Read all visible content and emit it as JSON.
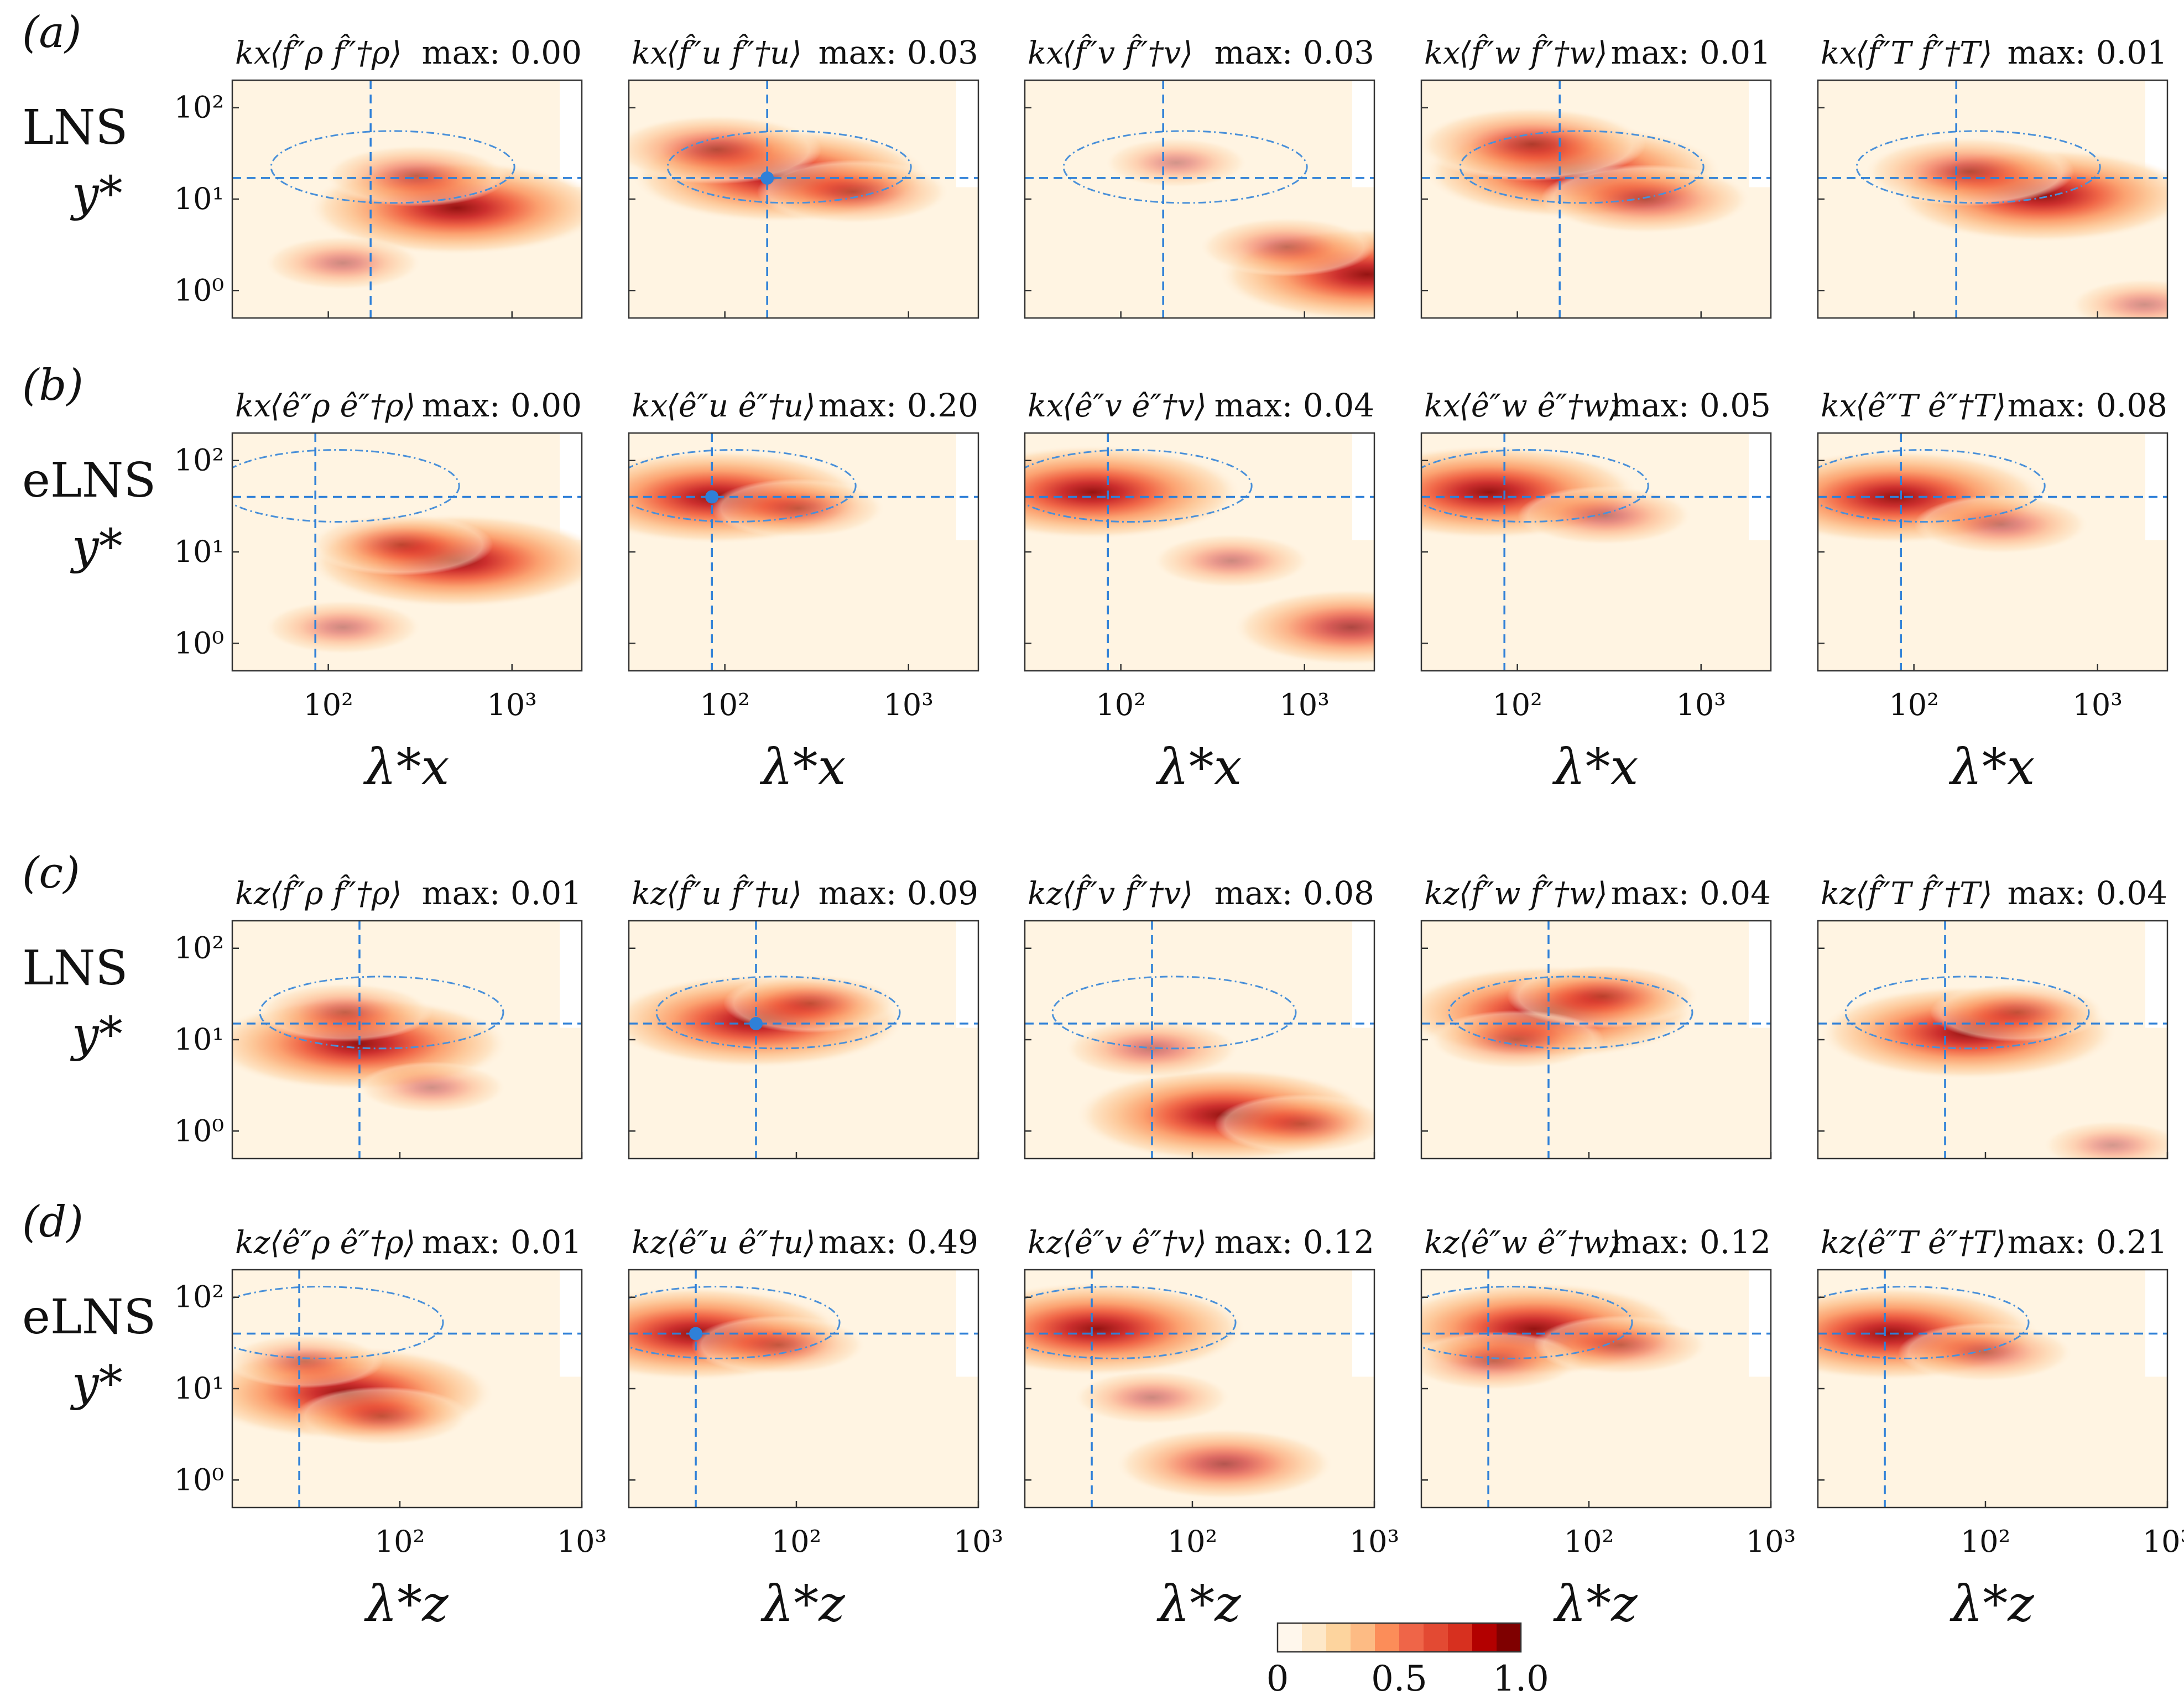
{
  "rows": [
    {
      "label": "(a)",
      "model": "LNS",
      "ylabel": "y*",
      "xaxis": "x",
      "xlabel": "λ*x",
      "xlim": [
        30,
        2400
      ],
      "xticks": [
        "10²",
        "10³"
      ],
      "titles": [
        {
          "prefix": "kx",
          "op": "⟨f̂″ρ f̂″†ρ⟩",
          "max": "max: 0.00"
        },
        {
          "prefix": "kx",
          "op": "⟨f̂″u f̂″†u⟩",
          "max": "max: 0.03"
        },
        {
          "prefix": "kx",
          "op": "⟨f̂″v f̂″†v⟩",
          "max": "max: 0.03"
        },
        {
          "prefix": "kx",
          "op": "⟨f̂″w f̂″†w⟩",
          "max": "max: 0.01"
        },
        {
          "prefix": "kx",
          "op": "⟨f̂″T f̂″†T⟩",
          "max": "max: 0.01"
        }
      ]
    },
    {
      "label": "(b)",
      "model": "eLNS",
      "ylabel": "y*",
      "xaxis": "x",
      "xlabel": "λ*x",
      "xlim": [
        30,
        2400
      ],
      "xticks": [
        "10²",
        "10³"
      ],
      "titles": [
        {
          "prefix": "kx",
          "op": "⟨ê″ρ ê″†ρ⟩",
          "max": "max: 0.00"
        },
        {
          "prefix": "kx",
          "op": "⟨ê″u ê″†u⟩",
          "max": "max: 0.20"
        },
        {
          "prefix": "kx",
          "op": "⟨ê″v ê″†v⟩",
          "max": "max: 0.04"
        },
        {
          "prefix": "kx",
          "op": "⟨ê″w ê″†w⟩",
          "max": "max: 0.05"
        },
        {
          "prefix": "kx",
          "op": "⟨ê″T ê″†T⟩",
          "max": "max: 0.08"
        }
      ]
    },
    {
      "label": "(c)",
      "model": "LNS",
      "ylabel": "y*",
      "xaxis": "z",
      "xlabel": "λ*z",
      "xlim": [
        12,
        1000
      ],
      "xticks": [
        "10²",
        "10³"
      ],
      "titles": [
        {
          "prefix": "kz",
          "op": "⟨f̂″ρ f̂″†ρ⟩",
          "max": "max: 0.01"
        },
        {
          "prefix": "kz",
          "op": "⟨f̂″u f̂″†u⟩",
          "max": "max: 0.09"
        },
        {
          "prefix": "kz",
          "op": "⟨f̂″v f̂″†v⟩",
          "max": "max: 0.08"
        },
        {
          "prefix": "kz",
          "op": "⟨f̂″w f̂″†w⟩",
          "max": "max: 0.04"
        },
        {
          "prefix": "kz",
          "op": "⟨f̂″T f̂″†T⟩",
          "max": "max: 0.04"
        }
      ]
    },
    {
      "label": "(d)",
      "model": "eLNS",
      "ylabel": "y*",
      "xaxis": "z",
      "xlabel": "λ*z",
      "xlim": [
        12,
        1000
      ],
      "xticks": [
        "10²",
        "10³"
      ],
      "titles": [
        {
          "prefix": "kz",
          "op": "⟨ê″ρ ê″†ρ⟩",
          "max": "max: 0.01"
        },
        {
          "prefix": "kz",
          "op": "⟨ê″u ê″†u⟩",
          "max": "max: 0.49"
        },
        {
          "prefix": "kz",
          "op": "⟨ê″v ê″†v⟩",
          "max": "max: 0.12"
        },
        {
          "prefix": "kz",
          "op": "⟨ê″w ê″†w⟩",
          "max": "max: 0.12"
        },
        {
          "prefix": "kz",
          "op": "⟨ê″T ê″†T⟩",
          "max": "max: 0.21"
        }
      ]
    }
  ],
  "yticks": [
    "10²",
    "10¹",
    "10⁰"
  ],
  "colorbar": {
    "ticks": [
      "0",
      "0.5",
      "1.0"
    ],
    "colors": [
      "#fff7ec",
      "#fee8c8",
      "#fdd49e",
      "#fdbb84",
      "#fc8d59",
      "#ef6548",
      "#e34a33",
      "#d7301f",
      "#b30000",
      "#7f0000"
    ]
  },
  "chart_data": {
    "type": "heatmap",
    "description_axes": {
      "y": "y*",
      "y_scale": "log",
      "y_range": [
        0.5,
        200
      ],
      "x_scale": "log"
    },
    "panels": [
      [
        {
          "blobs": [
            [
              500,
              8,
              1.0
            ],
            [
              300,
              18,
              0.35
            ],
            [
              120,
              2,
              0.2
            ]
          ],
          "crossX": 170,
          "crossY": 17,
          "dot": false
        },
        {
          "blobs": [
            [
              200,
              18,
              1.0
            ],
            [
              90,
              35,
              0.5
            ],
            [
              500,
              12,
              0.4
            ]
          ],
          "crossX": 170,
          "crossY": 17,
          "dot": true
        },
        {
          "blobs": [
            [
              2200,
              1.5,
              1.0
            ],
            [
              800,
              3,
              0.3
            ],
            [
              200,
              25,
              0.12
            ]
          ],
          "crossX": 170,
          "crossY": 17,
          "dot": false
        },
        {
          "blobs": [
            [
              200,
              20,
              1.0
            ],
            [
              120,
              40,
              0.6
            ],
            [
              500,
              10,
              0.5
            ]
          ],
          "crossX": 170,
          "crossY": 17,
          "dot": false
        },
        {
          "blobs": [
            [
              500,
              11,
              1.0
            ],
            [
              200,
              20,
              0.5
            ],
            [
              1800,
              0.7,
              0.15
            ]
          ],
          "crossX": 170,
          "crossY": 17,
          "dot": false
        }
      ],
      [
        {
          "blobs": [
            [
              500,
              8,
              1.0
            ],
            [
              250,
              12,
              0.35
            ],
            [
              120,
              1.5,
              0.2
            ]
          ],
          "crossX": 85,
          "crossY": 40,
          "dot": false
        },
        {
          "blobs": [
            [
              90,
              40,
              1.0
            ],
            [
              250,
              30,
              0.3
            ]
          ],
          "crossX": 85,
          "crossY": 40,
          "dot": true
        },
        {
          "blobs": [
            [
              70,
              45,
              1.0
            ],
            [
              1800,
              1.5,
              0.65
            ],
            [
              400,
              8,
              0.2
            ]
          ],
          "crossX": 85,
          "crossY": 40,
          "dot": false
        },
        {
          "blobs": [
            [
              70,
              45,
              1.0
            ],
            [
              300,
              25,
              0.3
            ]
          ],
          "crossX": 85,
          "crossY": 40,
          "dot": false
        },
        {
          "blobs": [
            [
              80,
              40,
              1.0
            ],
            [
              300,
              20,
              0.3
            ]
          ],
          "crossX": 85,
          "crossY": 40,
          "dot": false
        }
      ],
      [
        {
          "blobs": [
            [
              60,
              9,
              1.0
            ],
            [
              50,
              20,
              0.3
            ],
            [
              150,
              3,
              0.15
            ]
          ],
          "crossX": 60,
          "crossY": 15,
          "dot": false
        },
        {
          "blobs": [
            [
              60,
              16,
              1.0
            ],
            [
              120,
              25,
              0.3
            ]
          ],
          "crossX": 60,
          "crossY": 15,
          "dot": true
        },
        {
          "blobs": [
            [
              150,
              1.5,
              1.0
            ],
            [
              60,
              8,
              0.3
            ],
            [
              400,
              1.2,
              0.3
            ]
          ],
          "crossX": 60,
          "crossY": 15,
          "dot": false
        },
        {
          "blobs": [
            [
              60,
              20,
              1.0
            ],
            [
              120,
              30,
              0.4
            ],
            [
              40,
              10,
              0.3
            ]
          ],
          "crossX": 60,
          "crossY": 15,
          "dot": false
        },
        {
          "blobs": [
            [
              80,
              12,
              1.0
            ],
            [
              150,
              20,
              0.3
            ],
            [
              500,
              0.7,
              0.1
            ]
          ],
          "crossX": 60,
          "crossY": 15,
          "dot": false
        }
      ],
      [
        {
          "blobs": [
            [
              50,
              9,
              1.0
            ],
            [
              80,
              5,
              0.3
            ],
            [
              30,
              20,
              0.2
            ]
          ],
          "crossX": 28,
          "crossY": 40,
          "dot": false
        },
        {
          "blobs": [
            [
              28,
              40,
              1.0
            ],
            [
              80,
              30,
              0.3
            ]
          ],
          "crossX": 28,
          "crossY": 40,
          "dot": true
        },
        {
          "blobs": [
            [
              30,
              45,
              1.0
            ],
            [
              150,
              1.5,
              0.55
            ],
            [
              60,
              8,
              0.2
            ]
          ],
          "crossX": 28,
          "crossY": 40,
          "dot": false
        },
        {
          "blobs": [
            [
              50,
              45,
              1.0
            ],
            [
              30,
              20,
              0.3
            ],
            [
              150,
              30,
              0.3
            ]
          ],
          "crossX": 28,
          "crossY": 40,
          "dot": false
        },
        {
          "blobs": [
            [
              30,
              40,
              1.0
            ],
            [
              100,
              25,
              0.3
            ]
          ],
          "crossX": 28,
          "crossY": 40,
          "dot": false
        }
      ]
    ]
  }
}
